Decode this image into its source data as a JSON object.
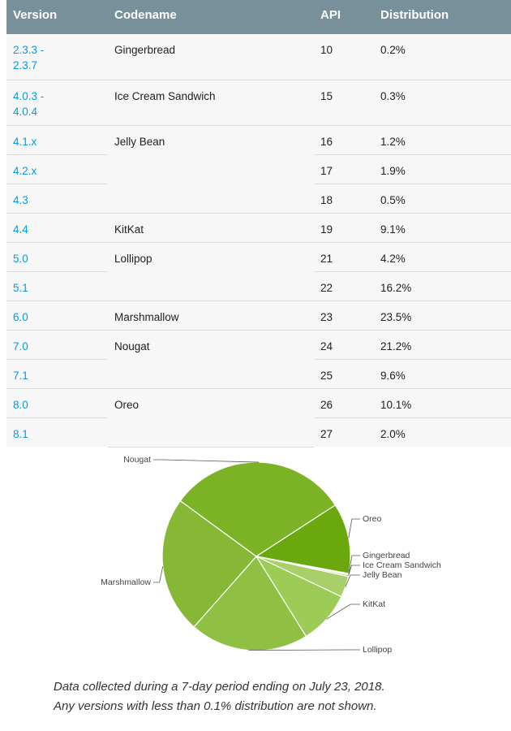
{
  "table": {
    "headers": [
      "Version",
      "Codename",
      "API",
      "Distribution"
    ],
    "rows": [
      {
        "version": "2.3.3 -\n2.3.7",
        "codename": "Gingerbread",
        "api": "10",
        "distribution": "0.2%"
      },
      {
        "version": "4.0.3 -\n4.0.4",
        "codename": "Ice Cream Sandwich",
        "api": "15",
        "distribution": "0.3%"
      },
      {
        "version": "4.1.x",
        "codename": "Jelly Bean",
        "api": "16",
        "distribution": "1.2%"
      },
      {
        "version": "4.2.x",
        "codename": "",
        "api": "17",
        "distribution": "1.9%"
      },
      {
        "version": "4.3",
        "codename": "",
        "api": "18",
        "distribution": "0.5%"
      },
      {
        "version": "4.4",
        "codename": "KitKat",
        "api": "19",
        "distribution": "9.1%"
      },
      {
        "version": "5.0",
        "codename": "Lollipop",
        "api": "21",
        "distribution": "4.2%"
      },
      {
        "version": "5.1",
        "codename": "",
        "api": "22",
        "distribution": "16.2%"
      },
      {
        "version": "6.0",
        "codename": "Marshmallow",
        "api": "23",
        "distribution": "23.5%"
      },
      {
        "version": "7.0",
        "codename": "Nougat",
        "api": "24",
        "distribution": "21.2%"
      },
      {
        "version": "7.1",
        "codename": "",
        "api": "25",
        "distribution": "9.6%"
      },
      {
        "version": "8.0",
        "codename": "Oreo",
        "api": "26",
        "distribution": "10.1%"
      },
      {
        "version": "8.1",
        "codename": "",
        "api": "27",
        "distribution": "2.0%"
      }
    ]
  },
  "chart_data": {
    "type": "pie",
    "categories": [
      "Oreo",
      "Gingerbread",
      "Ice Cream Sandwich",
      "Jelly Bean",
      "KitKat",
      "Lollipop",
      "Marshmallow",
      "Nougat"
    ],
    "values": [
      12.1,
      0.2,
      0.3,
      3.6,
      9.1,
      20.4,
      23.5,
      30.8
    ],
    "colors": [
      "#6aa80d",
      "#cfe0a8",
      "#c1d98e",
      "#a9cf6a",
      "#9ccc55",
      "#8fc043",
      "#86b835",
      "#7bb226"
    ],
    "legend": "labels-beside-slices"
  },
  "caption": {
    "line1": "Data collected during a 7-day period ending on July 23, 2018.",
    "line2": "Any versions with less than 0.1% distribution are not shown."
  },
  "colors": {
    "header_bg": "#78909c",
    "link": "#039be5",
    "row_bg": "#f7f7f7"
  }
}
